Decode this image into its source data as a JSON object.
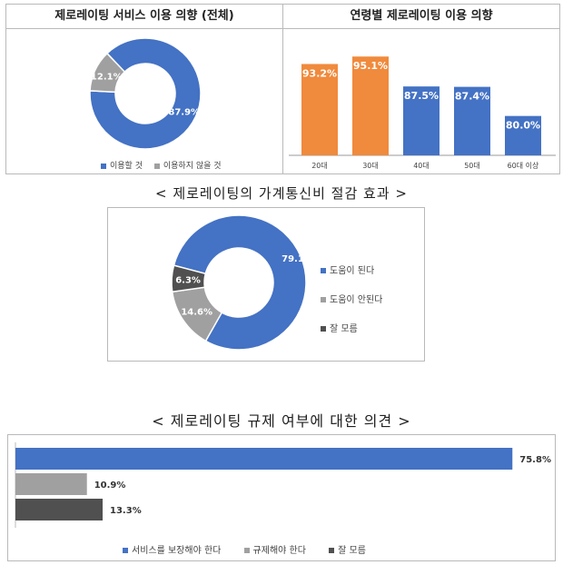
{
  "colors": {
    "blue": "#4472c4",
    "orange": "#f08a3c",
    "gray": "#a0a0a0",
    "dark": "#505050"
  },
  "chart_data": [
    {
      "type": "pie",
      "title": "제로레이팅 서비스 이용 의향 (전체)",
      "labels": [
        "이용할 것",
        "이용하지 않을 것"
      ],
      "values": [
        87.9,
        12.1
      ],
      "value_labels": [
        "87.9%",
        "12.1%"
      ],
      "colors": [
        "#4472c4",
        "#a0a0a0"
      ],
      "legend": "bottom"
    },
    {
      "type": "bar",
      "title": "연령별 제로레이팅 이용 의향",
      "categories": [
        "20대",
        "30대",
        "40대",
        "50대",
        "60대 이상"
      ],
      "values": [
        93.2,
        95.1,
        87.5,
        87.4,
        80.0
      ],
      "value_labels": [
        "93.2%",
        "95.1%",
        "87.5%",
        "87.4%",
        "80.0%"
      ],
      "colors": [
        "#f08a3c",
        "#f08a3c",
        "#4472c4",
        "#4472c4",
        "#4472c4"
      ],
      "ylim": [
        70,
        100
      ]
    },
    {
      "type": "pie",
      "title": "< 제로레이팅의 가계통신비 절감 효과 >",
      "labels": [
        "도움이 된다",
        "도움이 안된다",
        "잘 모름"
      ],
      "values": [
        79.1,
        14.6,
        6.3
      ],
      "value_labels": [
        "79.1%",
        "14.6%",
        "6.3%"
      ],
      "colors": [
        "#4472c4",
        "#a0a0a0",
        "#505050"
      ],
      "legend": "right"
    },
    {
      "type": "bar",
      "orientation": "horizontal",
      "title": "< 제로레이팅 규제 여부에 대한 의견 >",
      "categories": [
        "서비스를 보장해야 한다",
        "규제해야 한다",
        "잘 모름"
      ],
      "values": [
        75.8,
        10.9,
        13.3
      ],
      "value_labels": [
        "75.8%",
        "10.9%",
        "13.3%"
      ],
      "colors": [
        "#4472c4",
        "#a0a0a0",
        "#505050"
      ],
      "xlim": [
        0,
        100
      ],
      "legend": "bottom"
    }
  ]
}
